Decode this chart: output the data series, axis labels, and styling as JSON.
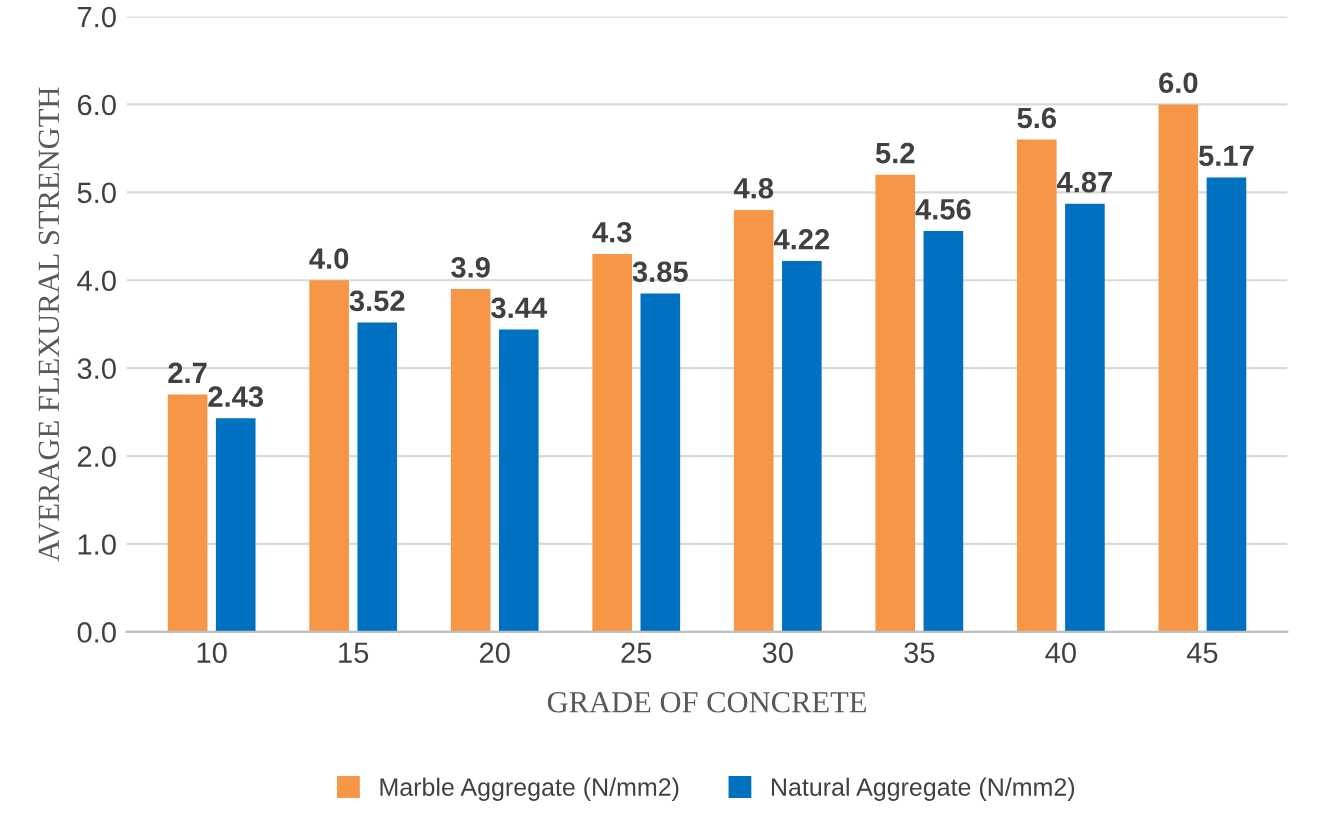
{
  "chart_data": {
    "type": "bar",
    "xlabel": "GRADE OF CONCRETE",
    "ylabel": "AVERAGE FLEXURAL STRENGTH",
    "categories": [
      "10",
      "15",
      "20",
      "25",
      "30",
      "35",
      "40",
      "45"
    ],
    "series": [
      {
        "name": "Marble Aggregate (N/mm2)",
        "color": "#f79646",
        "values": [
          2.7,
          4.0,
          3.9,
          4.3,
          4.8,
          5.2,
          5.6,
          6.0
        ],
        "value_labels": [
          "2.7",
          "4.0",
          "3.9",
          "4.3",
          "4.8",
          "5.2",
          "5.6",
          "6.0"
        ]
      },
      {
        "name": "Natural Aggregate (N/mm2)",
        "color": "#0070c0",
        "values": [
          2.43,
          3.52,
          3.44,
          3.85,
          4.22,
          4.56,
          4.87,
          5.17
        ],
        "value_labels": [
          "2.43",
          "3.52",
          "3.44",
          "3.85",
          "4.22",
          "4.56",
          "4.87",
          "5.17"
        ]
      }
    ],
    "ylim": [
      0,
      7
    ],
    "yticks": [
      {
        "value": 0,
        "label": "0.0"
      },
      {
        "value": 1,
        "label": "1.0"
      },
      {
        "value": 2,
        "label": "2.0"
      },
      {
        "value": 3,
        "label": "3.0"
      },
      {
        "value": 4,
        "label": "4.0"
      },
      {
        "value": 5,
        "label": "5.0"
      },
      {
        "value": 6,
        "label": "6.0"
      },
      {
        "value": 7,
        "label": "7.0"
      }
    ],
    "grid": "y",
    "legend": "bottom"
  }
}
